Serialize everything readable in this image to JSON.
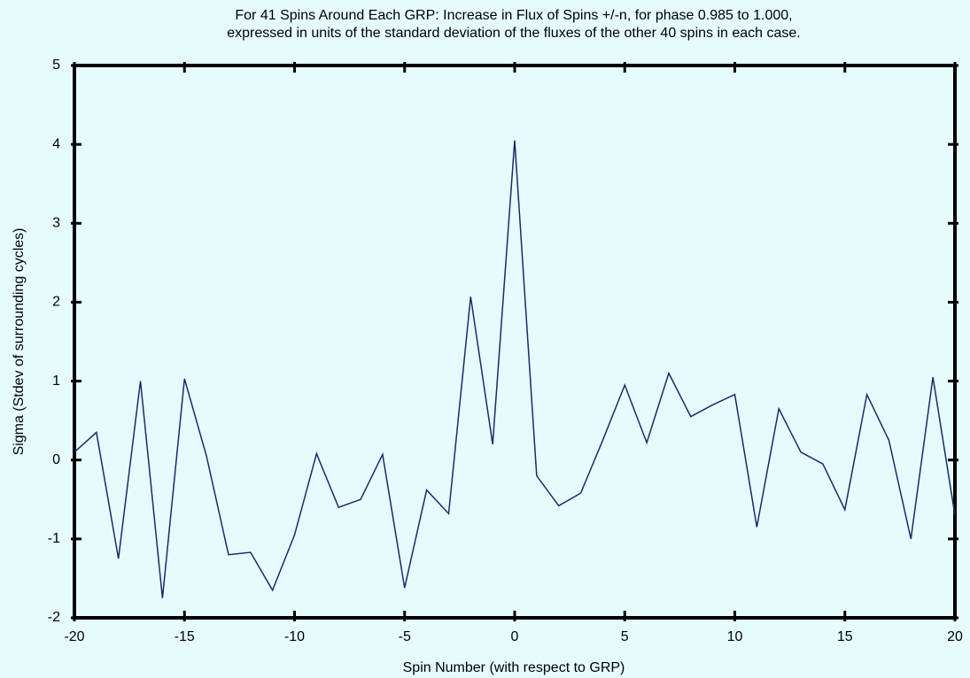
{
  "chart_data": {
    "type": "line",
    "title": "For 41 Spins Around Each GRP: Increase in Flux of Spins +/-n, for phase 0.985 to 1.000,",
    "subtitle": "expressed in units of the standard deviation of the fluxes of the other 40 spins in each case.",
    "x_label": "Spin Number (with respect to GRP)",
    "y_label": "Sigma (Stdev of surrounding cycles)",
    "x": [
      -20,
      -19,
      -18,
      -17,
      -16,
      -15,
      -14,
      -13,
      -12,
      -11,
      -10,
      -9,
      -8,
      -7,
      -6,
      -5,
      -4,
      -3,
      -2,
      -1,
      0,
      1,
      2,
      3,
      4,
      5,
      6,
      7,
      8,
      9,
      10,
      11,
      12,
      13,
      14,
      15,
      16,
      17,
      18,
      19,
      20
    ],
    "series": [
      {
        "color": "#1a2a6c",
        "values": [
          0.1,
          0.35,
          -1.25,
          1.0,
          -1.75,
          1.03,
          0.05,
          -1.2,
          -1.17,
          -1.65,
          -0.95,
          0.08,
          -0.6,
          -0.5,
          0.07,
          -1.62,
          -0.38,
          -0.68,
          2.07,
          0.2,
          4.05,
          -0.2,
          -0.58,
          -0.42,
          0.25,
          0.95,
          0.22,
          1.1,
          0.55,
          0.7,
          0.83,
          -0.85,
          0.65,
          0.1,
          -0.05,
          -0.63,
          0.83,
          0.25,
          -1.0,
          1.05,
          -0.7
        ]
      }
    ],
    "xlim": [
      -20,
      20
    ],
    "xticks": [
      -20,
      -15,
      -10,
      -5,
      0,
      5,
      10,
      15,
      20
    ],
    "ylim": [
      -2,
      5
    ],
    "yticks": [
      -2,
      -1,
      0,
      1,
      2,
      3,
      4,
      5
    ]
  }
}
